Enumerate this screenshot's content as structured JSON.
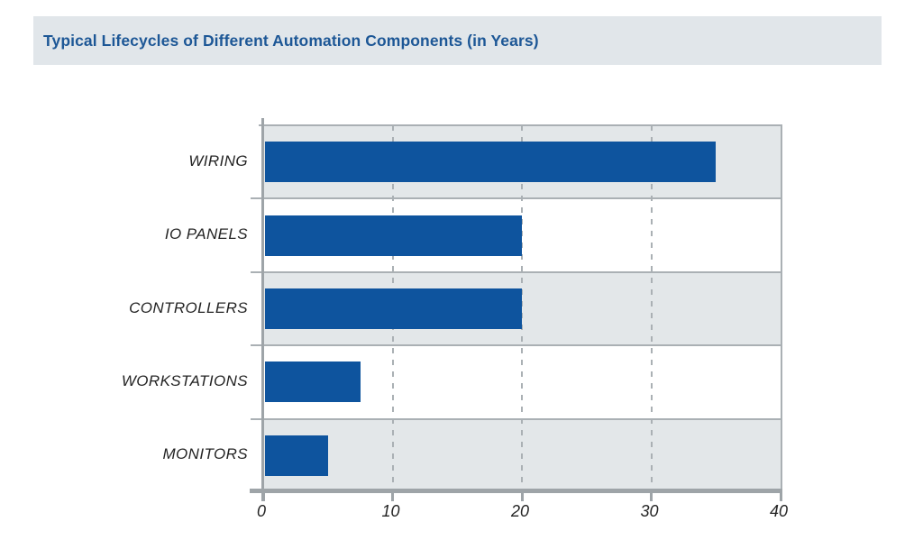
{
  "header": {
    "title": "Typical Lifecycles of Different Automation Components (in Years)"
  },
  "chart_data": {
    "type": "bar",
    "orientation": "horizontal",
    "title": "Typical Lifecycles of Different Automation Components (in Years)",
    "categories": [
      "WIRING",
      "IO PANELS",
      "CONTROLLERS",
      "WORKSTATIONS",
      "MONITORS"
    ],
    "values": [
      35,
      20,
      20,
      7.5,
      5
    ],
    "xlabel": "",
    "ylabel": "",
    "xlim": [
      0,
      40
    ],
    "xticks": [
      "0",
      "10",
      "20",
      "30",
      "40"
    ],
    "xtick_values": [
      0,
      10,
      20,
      30,
      40
    ],
    "gridline_x": [
      10,
      20,
      30
    ],
    "gridline_style": "dashed",
    "grid_on": true,
    "legend": "none",
    "row_shading": "alternating"
  },
  "colors": {
    "bar": "#0E549E",
    "title_text": "#1D5796",
    "title_band_bg": "#E1E6EA",
    "row_alt_bg": "#E3E7E9",
    "row_bg": "#FFFFFF",
    "grid": "#AAB0B4",
    "axis": "#9EA4A8",
    "label_text": "#242424"
  }
}
